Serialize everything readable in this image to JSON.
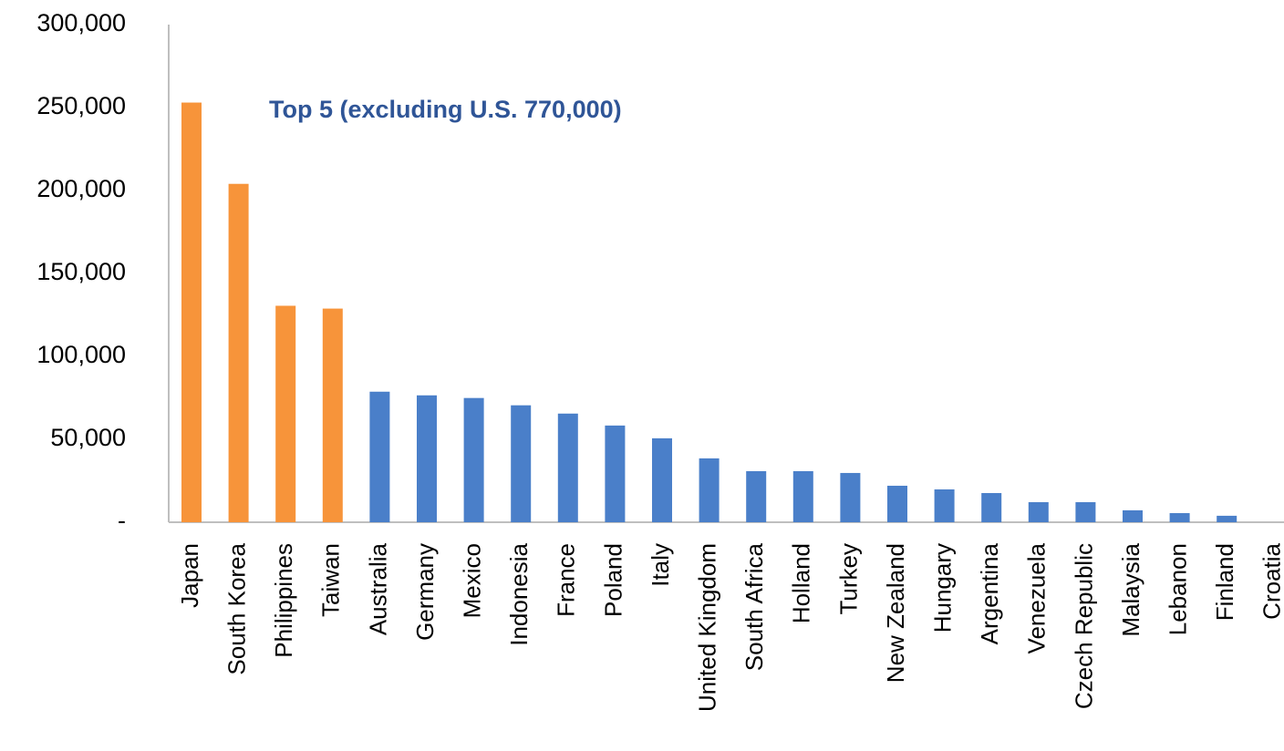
{
  "chart_data": {
    "type": "bar",
    "annotation": "Top 5 (excluding U.S. 770,000)",
    "categories": [
      "Japan",
      "South Korea",
      "Philippines",
      "Taiwan",
      "Australia",
      "Germany",
      "Mexico",
      "Indonesia",
      "France",
      "Poland",
      "Italy",
      "United Kingdom",
      "South Africa",
      "Holland",
      "Turkey",
      "New Zealand",
      "Hungary",
      "Argentina",
      "Venezuela",
      "Czech Republic",
      "Malaysia",
      "Lebanon",
      "Finland",
      "Croatia"
    ],
    "values": [
      253000,
      204000,
      130500,
      128800,
      78700,
      76500,
      74900,
      70500,
      65500,
      58300,
      50600,
      38500,
      30800,
      30800,
      29700,
      22000,
      19800,
      17600,
      12100,
      12100,
      7200,
      5500,
      3900,
      0
    ],
    "colors": [
      "#f7943a",
      "#f7943a",
      "#f7943a",
      "#f7943a",
      "#4a7fc9",
      "#4a7fc9",
      "#4a7fc9",
      "#4a7fc9",
      "#4a7fc9",
      "#4a7fc9",
      "#4a7fc9",
      "#4a7fc9",
      "#4a7fc9",
      "#4a7fc9",
      "#4a7fc9",
      "#4a7fc9",
      "#4a7fc9",
      "#4a7fc9",
      "#4a7fc9",
      "#4a7fc9",
      "#4a7fc9",
      "#4a7fc9",
      "#4a7fc9",
      "#4a7fc9"
    ],
    "ylim": [
      0,
      300000
    ],
    "yticks": [
      {
        "value": 0,
        "label": "-"
      },
      {
        "value": 50000,
        "label": "50,000"
      },
      {
        "value": 100000,
        "label": "100,000"
      },
      {
        "value": 150000,
        "label": "150,000"
      },
      {
        "value": 200000,
        "label": "200,000"
      },
      {
        "value": 250000,
        "label": "250,000"
      },
      {
        "value": 300000,
        "label": "300,000"
      }
    ],
    "grid": false
  }
}
